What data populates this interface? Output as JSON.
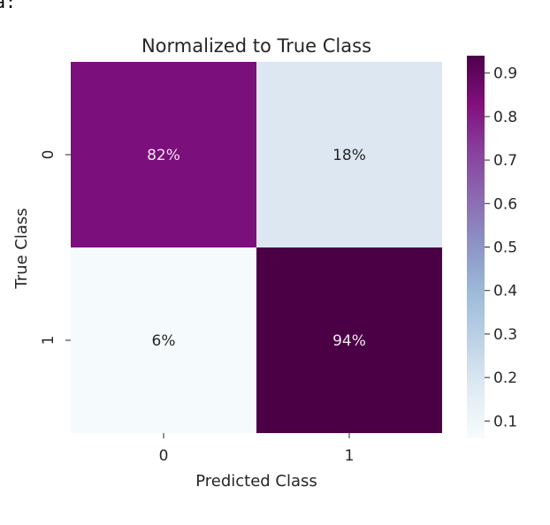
{
  "top_cut_text": "a:",
  "chart_data": {
    "type": "heatmap",
    "title": "Normalized to True Class",
    "xlabel": "Predicted Class",
    "ylabel": "True Class",
    "x_categories": [
      "0",
      "1"
    ],
    "y_categories": [
      "0",
      "1"
    ],
    "values": [
      [
        0.82,
        0.18
      ],
      [
        0.06,
        0.94
      ]
    ],
    "cell_labels": [
      [
        "82%",
        "18%"
      ],
      [
        "6%",
        "94%"
      ]
    ],
    "colormap": "BuPu",
    "colorbar": {
      "range": [
        0.06,
        0.94
      ],
      "ticks": [
        0.1,
        0.2,
        0.3,
        0.4,
        0.5,
        0.6,
        0.7,
        0.8,
        0.9
      ],
      "tick_labels": [
        "0.1",
        "0.2",
        "0.3",
        "0.4",
        "0.5",
        "0.6",
        "0.7",
        "0.8",
        "0.9"
      ]
    },
    "colors": {
      "c_0.82": "#7b0f7b",
      "c_0.18": "#dde7f2",
      "c_0.06": "#f5fbfc",
      "c_0.94": "#4b0045"
    }
  }
}
